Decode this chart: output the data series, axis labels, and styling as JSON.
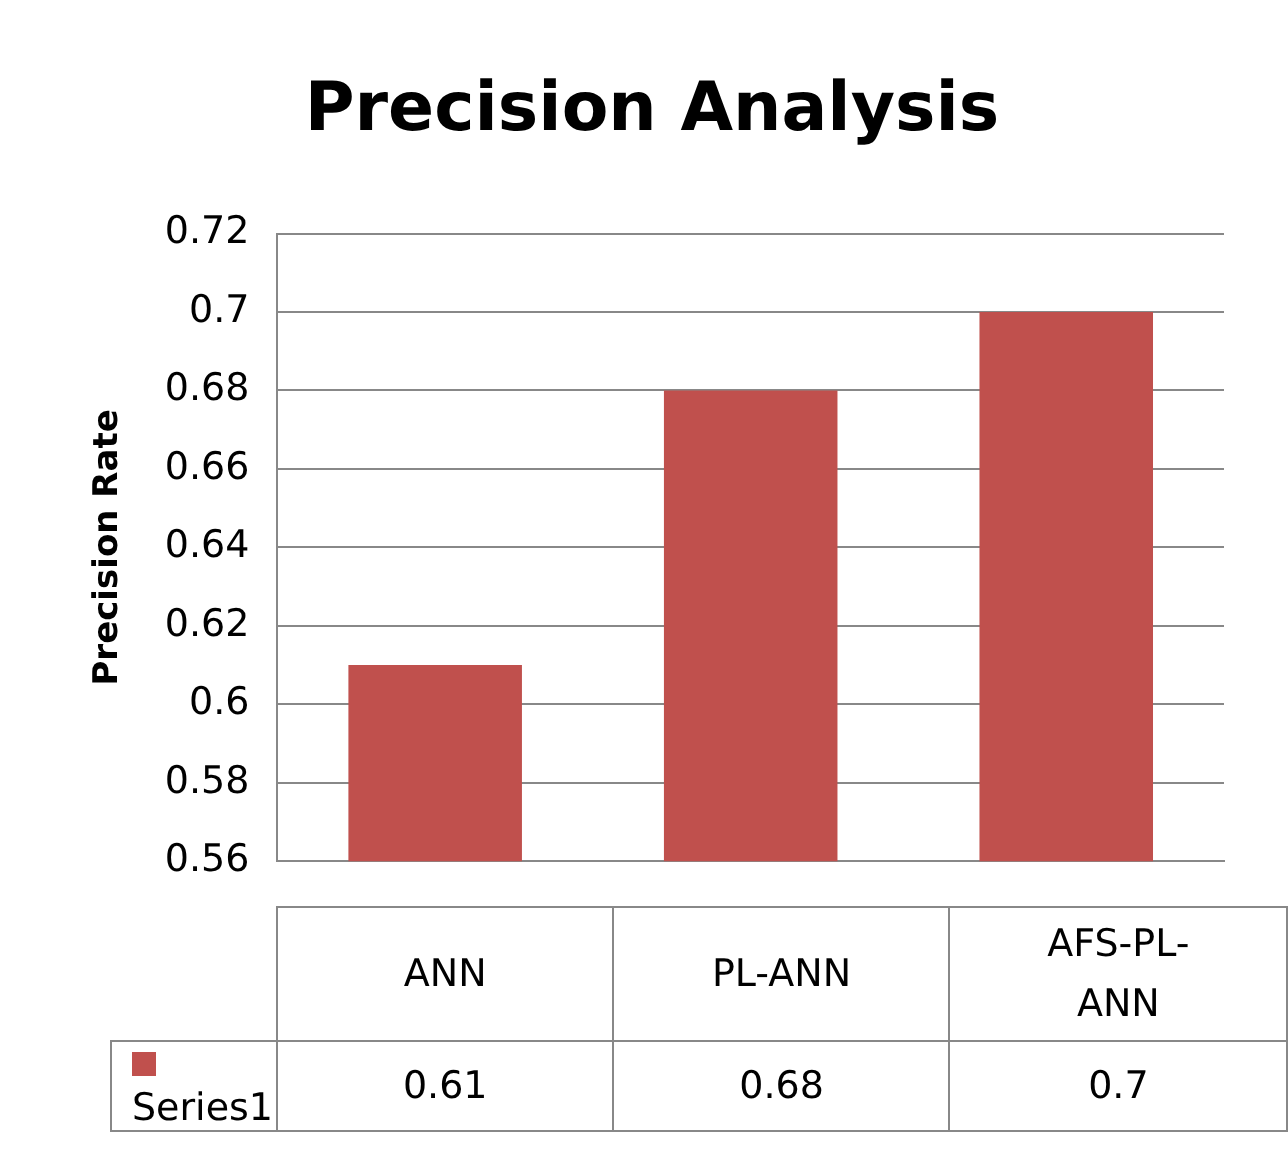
{
  "chart_data": {
    "type": "bar",
    "title": "Precision Analysis",
    "ylabel": "Precision Rate",
    "categories": [
      "ANN",
      "PL-ANN",
      "AFS-PL-ANN"
    ],
    "series": [
      {
        "name": "Series1",
        "color": "#c0504d",
        "values": [
          0.61,
          0.68,
          0.7
        ]
      }
    ],
    "ylim": [
      0.56,
      0.72
    ],
    "yticks": [
      0.56,
      0.58,
      0.6,
      0.62,
      0.64,
      0.66,
      0.68,
      0.7,
      0.72
    ],
    "grid": "y",
    "legend": "bottom left",
    "data_labels": true
  }
}
